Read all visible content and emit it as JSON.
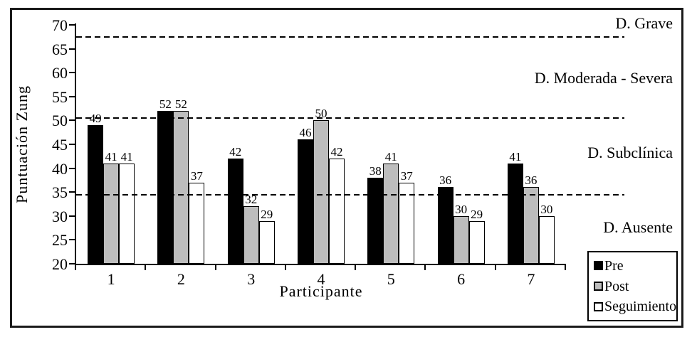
{
  "chart_data": {
    "type": "bar",
    "title": "",
    "xlabel": "Participante",
    "ylabel": "Puntuación Zung",
    "categories": [
      "1",
      "2",
      "3",
      "4",
      "5",
      "6",
      "7"
    ],
    "series": [
      {
        "name": "Pre",
        "color": "#000000",
        "values": [
          49,
          52,
          42,
          46,
          38,
          36,
          41
        ]
      },
      {
        "name": "Post",
        "color": "#bdbdbd",
        "values": [
          41,
          52,
          32,
          50,
          41,
          30,
          36
        ]
      },
      {
        "name": "Seguimiento",
        "color": "#ffffff",
        "values": [
          41,
          37,
          29,
          42,
          37,
          29,
          30
        ]
      }
    ],
    "ylim": [
      20,
      70
    ],
    "ytick_step": 5,
    "grid": false,
    "value_labels_shown": true,
    "legend_position": "bottom-right",
    "threshold_lines": [
      67.5,
      50.5,
      34.5
    ],
    "zone_labels": [
      {
        "text": "D. Grave",
        "at_value": 70.3
      },
      {
        "text": "D. Moderada - Severa",
        "at_value": 58.8
      },
      {
        "text": "D. Subclínica",
        "at_value": 43.2
      },
      {
        "text": "D. Ausente",
        "at_value": 27.6
      }
    ]
  }
}
